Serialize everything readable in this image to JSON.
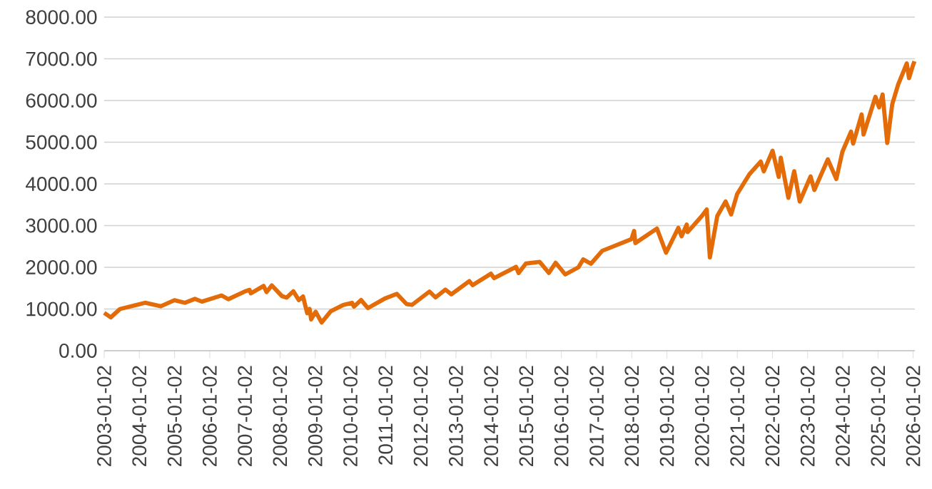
{
  "chart_data": {
    "type": "line",
    "color": "#e36c09",
    "line_style": "solid",
    "marker": "none",
    "grid": "y",
    "x": [
      "2003-01-02",
      "2003-03-11",
      "2003-06-15",
      "2003-12-31",
      "2004-03-01",
      "2004-08-12",
      "2004-12-31",
      "2005-04-20",
      "2005-08-01",
      "2005-10-13",
      "2006-05-05",
      "2006-07-14",
      "2006-12-29",
      "2007-02-20",
      "2007-03-05",
      "2007-07-16",
      "2007-08-15",
      "2007-10-09",
      "2008-01-22",
      "2008-03-10",
      "2008-05-19",
      "2008-07-15",
      "2008-08-28",
      "2008-10-10",
      "2008-11-04",
      "2008-11-20",
      "2009-01-06",
      "2009-03-09",
      "2009-06-12",
      "2009-10-19",
      "2010-01-19",
      "2010-02-08",
      "2010-04-23",
      "2010-07-02",
      "2010-12-31",
      "2011-04-29",
      "2011-08-08",
      "2011-10-03",
      "2012-04-02",
      "2012-06-04",
      "2012-09-14",
      "2012-11-15",
      "2013-05-21",
      "2013-06-24",
      "2013-12-31",
      "2014-02-03",
      "2014-09-18",
      "2014-10-15",
      "2014-12-29",
      "2015-05-21",
      "2015-08-25",
      "2015-11-03",
      "2016-02-11",
      "2016-06-27",
      "2016-08-15",
      "2016-11-04",
      "2017-03-01",
      "2017-12-29",
      "2018-01-26",
      "2018-02-08",
      "2018-09-20",
      "2018-12-24",
      "2019-05-01",
      "2019-06-03",
      "2019-07-26",
      "2019-08-05",
      "2019-12-31",
      "2020-02-19",
      "2020-03-23",
      "2020-06-08",
      "2020-09-02",
      "2020-10-30",
      "2020-12-31",
      "2021-05-07",
      "2021-09-02",
      "2021-10-04",
      "2022-01-03",
      "2022-03-08",
      "2022-03-29",
      "2022-06-16",
      "2022-08-16",
      "2022-10-12",
      "2023-02-02",
      "2023-03-13",
      "2023-07-31",
      "2023-10-27",
      "2023-12-29",
      "2024-03-28",
      "2024-04-19",
      "2024-07-16",
      "2024-08-05",
      "2024-12-06",
      "2025-01-13",
      "2025-02-19",
      "2025-04-08",
      "2025-05-30",
      "2025-07-31",
      "2025-10-28",
      "2025-11-20",
      "2026-01-02",
      "2026-01-16"
    ],
    "values": [
      909,
      800,
      1000,
      1112,
      1150,
      1065,
      1212,
      1150,
      1245,
      1177,
      1325,
      1235,
      1418,
      1459,
      1375,
      1553,
      1406,
      1565,
      1310,
      1273,
      1426,
      1215,
      1300,
      899,
      1005,
      752,
      935,
      677,
      946,
      1097,
      1150,
      1056,
      1217,
      1022,
      1258,
      1363,
      1119,
      1099,
      1419,
      1278,
      1465,
      1353,
      1669,
      1573,
      1848,
      1741,
      2011,
      1862,
      2090,
      2131,
      1867,
      2109,
      1829,
      2000,
      2190,
      2085,
      2395,
      2674,
      2873,
      2581,
      2930,
      2351,
      2946,
      2744,
      3025,
      2845,
      3231,
      3386,
      2237,
      3232,
      3580,
      3270,
      3756,
      4232,
      4537,
      4300,
      4796,
      4170,
      4631,
      3667,
      4305,
      3577,
      4180,
      3855,
      4589,
      4117,
      4770,
      5254,
      4967,
      5667,
      5186,
      6090,
      5836,
      6144,
      4983,
      5912,
      6389,
      6890,
      6538,
      6858,
      6940
    ],
    "xlim": [
      "2003-01-02",
      "2026-01-20"
    ],
    "xticks": [
      "2003-01-02",
      "2004-01-02",
      "2005-01-02",
      "2006-01-02",
      "2007-01-02",
      "2008-01-02",
      "2009-01-02",
      "2010-01-02",
      "2011-01-02",
      "2012-01-02",
      "2013-01-02",
      "2014-01-02",
      "2015-01-02",
      "2016-01-02",
      "2017-01-02",
      "2018-01-02",
      "2019-01-02",
      "2020-01-02",
      "2021-01-02",
      "2022-01-02",
      "2023-01-02",
      "2024-01-02",
      "2025-01-02",
      "2026-01-02"
    ],
    "ylim": [
      0,
      8000
    ],
    "yticks": [
      {
        "value": 0,
        "label": "0.00"
      },
      {
        "value": 1000,
        "label": "1000.00"
      },
      {
        "value": 2000,
        "label": "2000.00"
      },
      {
        "value": 3000,
        "label": "3000.00"
      },
      {
        "value": 4000,
        "label": "4000.00"
      },
      {
        "value": 5000,
        "label": "5000.00"
      },
      {
        "value": 6000,
        "label": "6000.00"
      },
      {
        "value": 7000,
        "label": "7000.00"
      },
      {
        "value": 8000,
        "label": "8000.00"
      }
    ]
  }
}
